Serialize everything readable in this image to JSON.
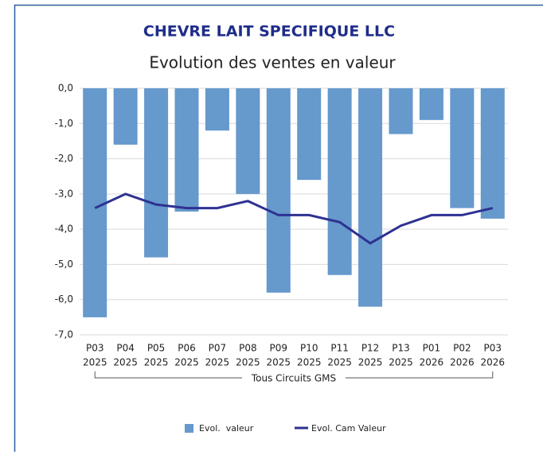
{
  "chart_data": {
    "type": "bar",
    "title": "CHEVRE LAIT SPECIFIQUE LLC",
    "subtitle": "Evolution des ventes en valeur",
    "group_label": "Tous Circuits GMS",
    "categories": [
      [
        "P03",
        "2025"
      ],
      [
        "P04",
        "2025"
      ],
      [
        "P05",
        "2025"
      ],
      [
        "P06",
        "2025"
      ],
      [
        "P07",
        "2025"
      ],
      [
        "P08",
        "2025"
      ],
      [
        "P09",
        "2025"
      ],
      [
        "P10",
        "2025"
      ],
      [
        "P11",
        "2025"
      ],
      [
        "P12",
        "2025"
      ],
      [
        "P13",
        "2025"
      ],
      [
        "P01",
        "2026"
      ],
      [
        "P02",
        "2026"
      ],
      [
        "P03",
        "2026"
      ]
    ],
    "series": [
      {
        "name": "Evol.  valeur",
        "type": "bar",
        "color": "#6699cc",
        "values": [
          -6.5,
          -1.6,
          -4.8,
          -3.5,
          -1.2,
          -3.0,
          -5.8,
          -2.6,
          -5.3,
          -6.2,
          -1.3,
          -0.9,
          -3.4,
          -3.7
        ]
      },
      {
        "name": "Evol. Cam Valeur",
        "type": "line",
        "color": "#2e3192",
        "values": [
          -3.4,
          -3.0,
          -3.3,
          -3.4,
          -3.4,
          -3.2,
          -3.6,
          -3.6,
          -3.8,
          -4.4,
          -3.9,
          -3.6,
          -3.6,
          -3.4
        ]
      }
    ],
    "ylim": [
      -7,
      0
    ],
    "yticks": [
      {
        "value": 0,
        "label": "0,0"
      },
      {
        "value": -1,
        "label": "-1,0"
      },
      {
        "value": -2,
        "label": "-2,0"
      },
      {
        "value": -3,
        "label": "-3,0"
      },
      {
        "value": -4,
        "label": "-4,0"
      },
      {
        "value": -5,
        "label": "-5,0"
      },
      {
        "value": -6,
        "label": "-6,0"
      },
      {
        "value": -7,
        "label": "-7,0"
      }
    ],
    "grid": true
  }
}
